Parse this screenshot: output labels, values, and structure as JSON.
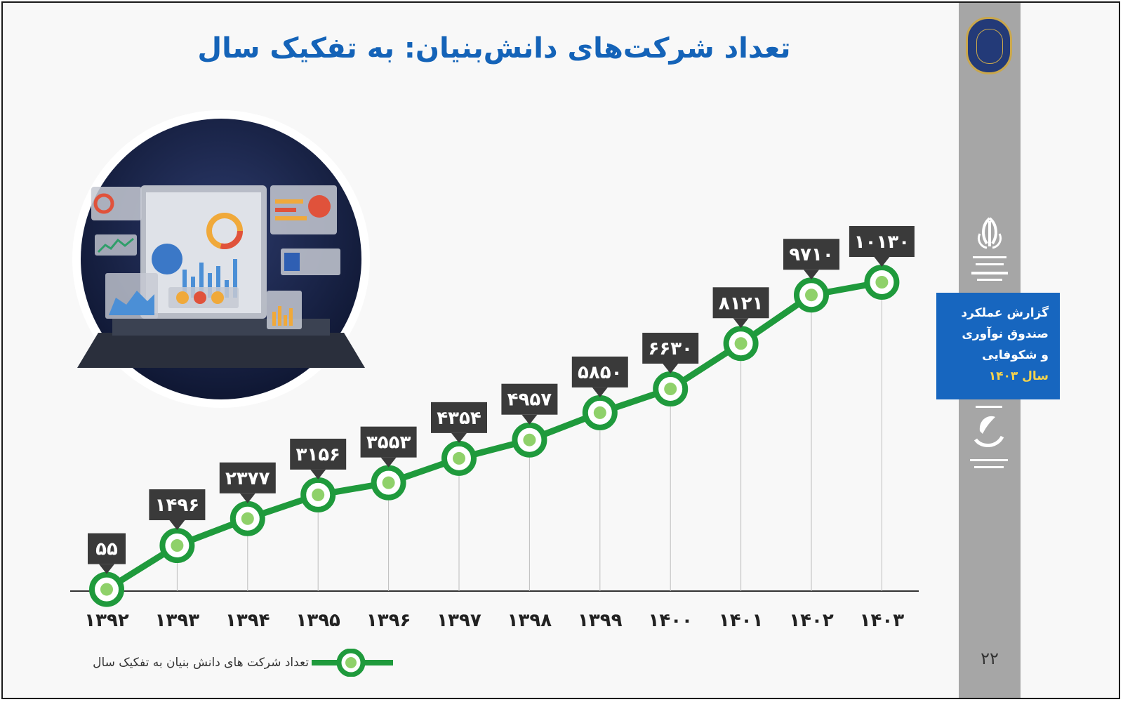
{
  "title": "تعداد شرکت‌های دانش‌بنیان: به تفکیک سال",
  "side_panel": {
    "report_line1": "گزارش عملکرد",
    "report_line2": "صندوق نوآوری",
    "report_line3": "و شکوفایی",
    "report_line4": "سال ۱۴۰۳",
    "page_number": "۲۲",
    "emblem_icon": "iran-emblem-icon",
    "seal_icon": "year-motto-seal-icon",
    "fund_logo_icon": "innovation-fund-logo-icon"
  },
  "colors": {
    "title": "#1463b8",
    "line": "#1f9a3c",
    "marker_fill": "#8fd16a",
    "label_box": "#3a3a3a",
    "report_box": "#1766bf",
    "strip": "#a6a6a6"
  },
  "chart_data": {
    "type": "line",
    "x": [
      "۱۳۹۲",
      "۱۳۹۳",
      "۱۳۹۴",
      "۱۳۹۵",
      "۱۳۹۶",
      "۱۳۹۷",
      "۱۳۹۸",
      "۱۳۹۹",
      "۱۴۰۰",
      "۱۴۰۱",
      "۱۴۰۲",
      "۱۴۰۳"
    ],
    "series": [
      {
        "name": "تعداد شرکت های دانش بنیان به تفکیک سال",
        "values": [
          55,
          1496,
          2377,
          3156,
          3553,
          4354,
          4957,
          5850,
          6630,
          8121,
          9710,
          10130
        ],
        "labels": [
          "۵۵",
          "۱۴۹۶",
          "۲۳۷۷",
          "۳۱۵۶",
          "۳۵۵۳",
          "۴۳۵۴",
          "۴۹۵۷",
          "۵۸۵۰",
          "۶۶۳۰",
          "۸۱۲۱",
          "۹۷۱۰",
          "۱۰۱۳۰"
        ]
      }
    ],
    "title": "تعداد شرکت‌های دانش‌بنیان: به تفکیک سال",
    "legend_position": "bottom-left",
    "grid": false
  }
}
